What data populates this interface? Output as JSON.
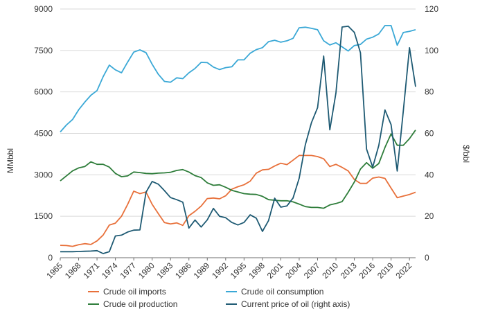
{
  "chart_data": {
    "type": "line",
    "title": "",
    "x": [
      1965,
      1966,
      1967,
      1968,
      1969,
      1970,
      1971,
      1972,
      1973,
      1974,
      1975,
      1976,
      1977,
      1978,
      1979,
      1980,
      1981,
      1982,
      1983,
      1984,
      1985,
      1986,
      1987,
      1988,
      1989,
      1990,
      1991,
      1992,
      1993,
      1994,
      1995,
      1996,
      1997,
      1998,
      1999,
      2000,
      2001,
      2002,
      2003,
      2004,
      2005,
      2006,
      2007,
      2008,
      2009,
      2010,
      2011,
      2012,
      2013,
      2014,
      2015,
      2016,
      2017,
      2018,
      2019,
      2020,
      2021,
      2022,
      2023
    ],
    "x_ticks": [
      "1965",
      "1968",
      "1971",
      "1974",
      "1977",
      "1980",
      "1983",
      "1986",
      "1989",
      "1992",
      "1995",
      "1998",
      "2001",
      "2004",
      "2007",
      "2010",
      "2013",
      "2016",
      "2019",
      "2022"
    ],
    "x_tick_values": [
      1965,
      1968,
      1971,
      1974,
      1977,
      1980,
      1983,
      1986,
      1989,
      1992,
      1995,
      1998,
      2001,
      2004,
      2007,
      2010,
      2013,
      2016,
      2019,
      2022
    ],
    "left_axis": {
      "label": "MMbbl",
      "range": [
        0,
        9000
      ],
      "ticks": [
        0,
        1500,
        3000,
        4500,
        6000,
        7500,
        9000
      ]
    },
    "right_axis": {
      "label": "$/bbl",
      "range": [
        0,
        120
      ],
      "ticks": [
        0,
        20,
        40,
        60,
        80,
        100,
        120
      ]
    },
    "grid": true,
    "legend_position": "bottom",
    "series": [
      {
        "name": "Crude oil imports",
        "axis": "left",
        "color": "#e8703a",
        "values": [
          450,
          440,
          410,
          470,
          510,
          480,
          610,
          820,
          1180,
          1250,
          1500,
          1930,
          2410,
          2320,
          2380,
          1930,
          1600,
          1270,
          1220,
          1260,
          1170,
          1520,
          1680,
          1870,
          2140,
          2160,
          2130,
          2240,
          2480,
          2570,
          2640,
          2770,
          3060,
          3180,
          3200,
          3320,
          3420,
          3370,
          3530,
          3700,
          3700,
          3700,
          3660,
          3580,
          3300,
          3380,
          3270,
          3140,
          2830,
          2690,
          2690,
          2880,
          2920,
          2870,
          2520,
          2170,
          2230,
          2290,
          2370
        ]
      },
      {
        "name": "Crude oil consumption",
        "axis": "left",
        "color": "#3aa8d6",
        "values": [
          4550,
          4800,
          5000,
          5350,
          5630,
          5880,
          6050,
          6550,
          6970,
          6800,
          6690,
          7080,
          7440,
          7520,
          7420,
          7000,
          6640,
          6380,
          6350,
          6510,
          6480,
          6690,
          6850,
          7070,
          7060,
          6900,
          6810,
          6880,
          6910,
          7160,
          7160,
          7400,
          7530,
          7600,
          7820,
          7870,
          7800,
          7850,
          7940,
          8320,
          8340,
          8300,
          8250,
          7850,
          7700,
          7780,
          7630,
          7480,
          7680,
          7720,
          7910,
          7980,
          8100,
          8400,
          8400,
          7690,
          8150,
          8190,
          8250
        ]
      },
      {
        "name": "Crude oil production",
        "axis": "left",
        "color": "#2e7d3a",
        "values": [
          2780,
          2960,
          3140,
          3250,
          3300,
          3470,
          3380,
          3380,
          3280,
          3050,
          2930,
          2960,
          3100,
          3080,
          3050,
          3040,
          3060,
          3070,
          3090,
          3160,
          3190,
          3100,
          2970,
          2900,
          2710,
          2620,
          2640,
          2550,
          2440,
          2380,
          2320,
          2300,
          2290,
          2220,
          2100,
          2080,
          2060,
          2060,
          2020,
          1940,
          1850,
          1820,
          1820,
          1790,
          1910,
          1960,
          2030,
          2370,
          2740,
          3210,
          3440,
          3240,
          3410,
          3990,
          4480,
          4070,
          4070,
          4310,
          4620
        ]
      },
      {
        "name": "Current price of oil (right axis)",
        "axis": "right",
        "color": "#1e5a73",
        "values": [
          2.9,
          2.9,
          2.9,
          3.0,
          3.1,
          3.2,
          3.4,
          2.0,
          2.9,
          10.5,
          10.9,
          12.4,
          13.3,
          13.4,
          31.6,
          36.8,
          35.5,
          32.4,
          29.0,
          28.0,
          26.8,
          14.3,
          18.2,
          14.8,
          18.3,
          23.8,
          20.0,
          19.3,
          17.0,
          15.8,
          17.0,
          20.7,
          19.1,
          12.7,
          17.9,
          28.7,
          24.4,
          25.0,
          28.8,
          38.3,
          54.5,
          65.1,
          72.4,
          97.3,
          61.7,
          79.5,
          111.3,
          111.7,
          108.7,
          98.9,
          52.4,
          43.7,
          54.2,
          71.3,
          64.2,
          41.8,
          70.9,
          101.3,
          82.5
        ]
      }
    ]
  }
}
